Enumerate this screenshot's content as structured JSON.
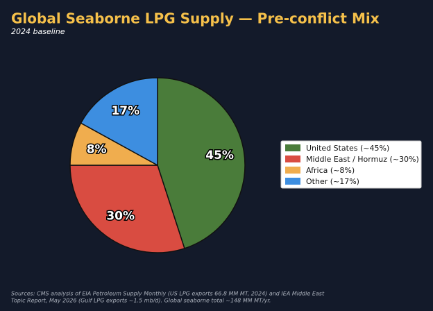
{
  "chart_data": {
    "type": "pie",
    "title": "Global Seaborne LPG Supply — Pre-conflict Mix",
    "subtitle": "2024 baseline",
    "categories": [
      "United States (~45%)",
      "Middle East / Hormuz (~30%)",
      "Africa (~8%)",
      "Other (~17%)"
    ],
    "values": [
      45,
      30,
      8,
      17
    ],
    "value_labels": [
      "45%",
      "30%",
      "8%",
      "17%"
    ],
    "colors": [
      "#4a7c3a",
      "#d94c41",
      "#f0ad4e",
      "#3d8ee0"
    ],
    "legend": "right",
    "source": [
      "Sources: CMS analysis of EIA Petroleum Supply Monthly (US LPG exports 66.8 MM MT, 2024) and IEA Middle East",
      "Topic Report, May 2026 (Gulf LPG exports ~1.5 mb/d). Global seaborne total ~148 MM MT/yr."
    ]
  }
}
